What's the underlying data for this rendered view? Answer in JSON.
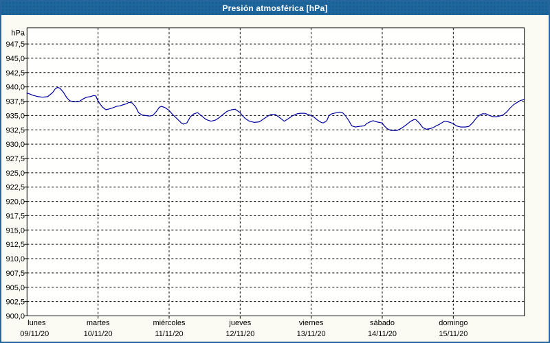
{
  "window": {
    "title": "Presión atmosférica [hPa]",
    "titlebar_bg": "#1d669e",
    "border_color": "#27659c",
    "content_bg": "#fbfbf4"
  },
  "chart_data": {
    "type": "line",
    "title": "Presión atmosférica [hPa]",
    "unit_label": "hPa",
    "grid": "dashed",
    "legend": "none",
    "plot_bg": "#fffffd",
    "axis_color": "#000000",
    "line_color": "#0000a0",
    "ylim": [
      900,
      950.3
    ],
    "ytick_step": 2.5,
    "ytick_values": [
      947.5,
      945.0,
      942.5,
      940.0,
      937.5,
      935.0,
      932.5,
      930.0,
      927.5,
      925.0,
      922.5,
      920.0,
      917.5,
      915.0,
      912.5,
      910.0,
      907.5,
      905.0,
      902.5,
      900.0
    ],
    "ytick_labels": [
      "947,5",
      "945,0",
      "942,5",
      "940,0",
      "937,5",
      "935,0",
      "932,5",
      "930,0",
      "927,5",
      "925,0",
      "922,5",
      "920,0",
      "917,5",
      "915,0",
      "912,5",
      "910,0",
      "907,5",
      "905,0",
      "902,5",
      "900,0"
    ],
    "x_day_span": 7,
    "x_categories": [
      {
        "day": "lunes",
        "date": "09/11/20"
      },
      {
        "day": "martes",
        "date": "10/11/20"
      },
      {
        "day": "miércoles",
        "date": "11/11/20"
      },
      {
        "day": "jueves",
        "date": "12/11/20"
      },
      {
        "day": "viernes",
        "date": "13/11/20"
      },
      {
        "day": "sábado",
        "date": "14/11/20"
      },
      {
        "day": "domingo",
        "date": "15/11/20"
      }
    ],
    "series": [
      {
        "name": "Presión atmosférica",
        "unit": "hPa",
        "x_unit": "days_from_monday",
        "points": [
          [
            0.0,
            938.9
          ],
          [
            0.03,
            938.8
          ],
          [
            0.09,
            938.5
          ],
          [
            0.16,
            938.3
          ],
          [
            0.22,
            938.2
          ],
          [
            0.29,
            938.3
          ],
          [
            0.36,
            939.0
          ],
          [
            0.4,
            939.7
          ],
          [
            0.43,
            939.9
          ],
          [
            0.46,
            939.8
          ],
          [
            0.51,
            939.1
          ],
          [
            0.56,
            938.1
          ],
          [
            0.6,
            937.6
          ],
          [
            0.65,
            937.4
          ],
          [
            0.69,
            937.4
          ],
          [
            0.74,
            937.5
          ],
          [
            0.79,
            937.9
          ],
          [
            0.84,
            938.2
          ],
          [
            0.89,
            938.3
          ],
          [
            0.94,
            938.5
          ],
          [
            0.97,
            938.4
          ],
          [
            1.0,
            937.5
          ],
          [
            1.06,
            936.5
          ],
          [
            1.11,
            936.0
          ],
          [
            1.17,
            936.2
          ],
          [
            1.22,
            936.4
          ],
          [
            1.26,
            936.6
          ],
          [
            1.31,
            936.7
          ],
          [
            1.36,
            936.9
          ],
          [
            1.41,
            937.1
          ],
          [
            1.43,
            937.3
          ],
          [
            1.48,
            937.2
          ],
          [
            1.53,
            936.5
          ],
          [
            1.57,
            935.5
          ],
          [
            1.62,
            935.1
          ],
          [
            1.67,
            935.0
          ],
          [
            1.72,
            934.9
          ],
          [
            1.77,
            935.0
          ],
          [
            1.82,
            935.7
          ],
          [
            1.86,
            936.4
          ],
          [
            1.89,
            936.6
          ],
          [
            1.94,
            936.4
          ],
          [
            2.0,
            935.9
          ],
          [
            2.04,
            935.3
          ],
          [
            2.09,
            934.7
          ],
          [
            2.14,
            934.1
          ],
          [
            2.17,
            933.7
          ],
          [
            2.2,
            933.5
          ],
          [
            2.25,
            933.7
          ],
          [
            2.3,
            934.8
          ],
          [
            2.35,
            935.3
          ],
          [
            2.4,
            935.5
          ],
          [
            2.46,
            934.9
          ],
          [
            2.52,
            934.3
          ],
          [
            2.59,
            934.0
          ],
          [
            2.65,
            934.2
          ],
          [
            2.69,
            934.5
          ],
          [
            2.75,
            935.1
          ],
          [
            2.81,
            935.7
          ],
          [
            2.88,
            936.0
          ],
          [
            2.93,
            936.1
          ],
          [
            3.0,
            935.5
          ],
          [
            3.03,
            935.0
          ],
          [
            3.07,
            934.5
          ],
          [
            3.13,
            934.0
          ],
          [
            3.2,
            933.8
          ],
          [
            3.27,
            933.9
          ],
          [
            3.33,
            934.4
          ],
          [
            3.39,
            934.9
          ],
          [
            3.44,
            935.2
          ],
          [
            3.49,
            935.2
          ],
          [
            3.54,
            934.8
          ],
          [
            3.59,
            934.3
          ],
          [
            3.62,
            934.0
          ],
          [
            3.66,
            934.3
          ],
          [
            3.73,
            934.9
          ],
          [
            3.8,
            935.3
          ],
          [
            3.85,
            935.4
          ],
          [
            3.91,
            935.4
          ],
          [
            3.95,
            935.2
          ],
          [
            4.0,
            935.0
          ],
          [
            4.04,
            934.7
          ],
          [
            4.09,
            934.2
          ],
          [
            4.14,
            933.8
          ],
          [
            4.17,
            933.7
          ],
          [
            4.22,
            934.1
          ],
          [
            4.25,
            935.0
          ],
          [
            4.29,
            935.3
          ],
          [
            4.36,
            935.5
          ],
          [
            4.41,
            935.6
          ],
          [
            4.44,
            935.5
          ],
          [
            4.48,
            935.0
          ],
          [
            4.53,
            934.1
          ],
          [
            4.57,
            933.2
          ],
          [
            4.62,
            933.0
          ],
          [
            4.68,
            933.1
          ],
          [
            4.75,
            933.2
          ],
          [
            4.78,
            933.6
          ],
          [
            4.83,
            933.9
          ],
          [
            4.87,
            934.1
          ],
          [
            4.92,
            933.9
          ],
          [
            5.0,
            933.7
          ],
          [
            5.02,
            933.3
          ],
          [
            5.07,
            932.7
          ],
          [
            5.12,
            932.4
          ],
          [
            5.16,
            932.4
          ],
          [
            5.21,
            932.4
          ],
          [
            5.26,
            932.7
          ],
          [
            5.33,
            933.3
          ],
          [
            5.4,
            934.0
          ],
          [
            5.45,
            934.3
          ],
          [
            5.47,
            934.3
          ],
          [
            5.52,
            933.7
          ],
          [
            5.57,
            932.9
          ],
          [
            5.62,
            932.6
          ],
          [
            5.67,
            932.7
          ],
          [
            5.72,
            932.9
          ],
          [
            5.76,
            933.2
          ],
          [
            5.81,
            933.5
          ],
          [
            5.86,
            933.9
          ],
          [
            5.88,
            934.0
          ],
          [
            5.93,
            933.9
          ],
          [
            6.0,
            933.6
          ],
          [
            6.04,
            933.2
          ],
          [
            6.1,
            933.0
          ],
          [
            6.17,
            933.0
          ],
          [
            6.22,
            933.1
          ],
          [
            6.27,
            933.7
          ],
          [
            6.32,
            934.5
          ],
          [
            6.36,
            935.0
          ],
          [
            6.41,
            935.3
          ],
          [
            6.46,
            935.3
          ],
          [
            6.51,
            935.0
          ],
          [
            6.56,
            934.8
          ],
          [
            6.61,
            934.8
          ],
          [
            6.65,
            934.9
          ],
          [
            6.7,
            935.1
          ],
          [
            6.75,
            935.6
          ],
          [
            6.8,
            936.3
          ],
          [
            6.85,
            936.9
          ],
          [
            6.9,
            937.3
          ],
          [
            6.94,
            937.6
          ],
          [
            7.0,
            937.8
          ]
        ]
      }
    ]
  }
}
